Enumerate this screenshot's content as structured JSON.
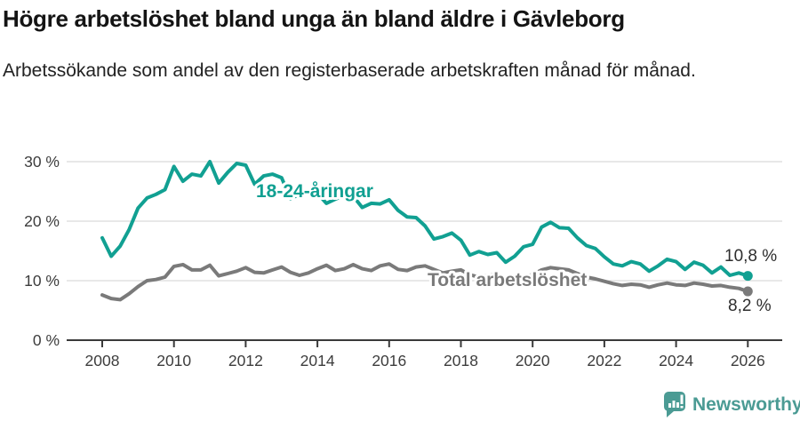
{
  "header": {
    "title": "Högre arbetslöshet bland unga än bland äldre i Gävleborg",
    "subtitle": "Arbetssökande som andel av den registerbaserade arbetskraften månad för månad."
  },
  "chart_data": {
    "type": "line",
    "title": "Högre arbetslöshet bland unga än bland äldre i Gävleborg",
    "subtitle": "Arbetssökande som andel av den registerbaserade arbetskraften månad för månad.",
    "xlabel": "",
    "ylabel": "",
    "grid": "horizontal",
    "legend": "inline-labels",
    "x_start": 2008,
    "x_step": 0.25,
    "xlim": [
      2007.0,
      2027.0
    ],
    "ylim": [
      0,
      32
    ],
    "x_axis": {
      "ticks": [
        {
          "value": 2008,
          "label": "2008"
        },
        {
          "value": 2010,
          "label": "2010"
        },
        {
          "value": 2012,
          "label": "2012"
        },
        {
          "value": 2014,
          "label": "2014"
        },
        {
          "value": 2016,
          "label": "2016"
        },
        {
          "value": 2018,
          "label": "2018"
        },
        {
          "value": 2020,
          "label": "2020"
        },
        {
          "value": 2022,
          "label": "2022"
        },
        {
          "value": 2024,
          "label": "2024"
        },
        {
          "value": 2026,
          "label": "2026"
        }
      ]
    },
    "y_axis": {
      "ticks": [
        {
          "value": 0,
          "label": "0 %"
        },
        {
          "value": 10,
          "label": "10 %"
        },
        {
          "value": 20,
          "label": "20 %"
        },
        {
          "value": 30,
          "label": "30 %"
        }
      ]
    },
    "series": [
      {
        "name": "18-24-åringar",
        "color": "#11a092",
        "end_label": "10,8 %",
        "end_value": 10.8,
        "values": [
          17.2,
          14.1,
          15.8,
          18.6,
          22.2,
          23.9,
          24.5,
          25.3,
          29.2,
          26.7,
          27.9,
          27.6,
          30.0,
          26.4,
          28.2,
          29.7,
          29.4,
          26.2,
          27.6,
          27.9,
          27.3,
          23.8,
          24.5,
          24.8,
          24.7,
          23.0,
          23.7,
          24.3,
          24.2,
          22.3,
          23.0,
          22.9,
          23.6,
          21.8,
          20.7,
          20.6,
          19.2,
          17.0,
          17.4,
          18.0,
          16.8,
          14.3,
          14.9,
          14.4,
          14.7,
          13.1,
          14.1,
          15.7,
          16.1,
          19.0,
          19.8,
          18.9,
          18.8,
          17.2,
          15.9,
          15.4,
          14.0,
          12.8,
          12.5,
          13.2,
          12.8,
          11.6,
          12.5,
          13.6,
          13.2,
          11.9,
          13.1,
          12.6,
          11.3,
          12.3,
          10.9,
          11.3,
          10.8
        ]
      },
      {
        "name": "Total arbetslöshet",
        "color": "#7a7a7a",
        "end_label": "8,2 %",
        "end_value": 8.2,
        "values": [
          7.6,
          7.0,
          6.8,
          7.8,
          9.0,
          10.0,
          10.2,
          10.6,
          12.4,
          12.7,
          11.8,
          11.8,
          12.6,
          10.8,
          11.2,
          11.6,
          12.2,
          11.4,
          11.3,
          11.8,
          12.3,
          11.4,
          10.9,
          11.3,
          12.0,
          12.6,
          11.7,
          12.0,
          12.7,
          12.0,
          11.7,
          12.5,
          12.8,
          11.9,
          11.7,
          12.3,
          12.5,
          11.9,
          11.3,
          11.6,
          11.8,
          11.0,
          10.6,
          10.9,
          11.1,
          10.5,
          10.3,
          10.7,
          11.0,
          11.8,
          12.2,
          12.0,
          11.8,
          11.2,
          10.6,
          10.3,
          9.9,
          9.5,
          9.2,
          9.4,
          9.3,
          8.9,
          9.3,
          9.6,
          9.3,
          9.2,
          9.6,
          9.4,
          9.1,
          9.2,
          8.9,
          8.7,
          8.2
        ]
      }
    ]
  },
  "footer": {
    "brand": "Newsworthy",
    "brand_color": "#4b9b94",
    "logo_icon": "bar-chart-speech-bubble-icon"
  }
}
